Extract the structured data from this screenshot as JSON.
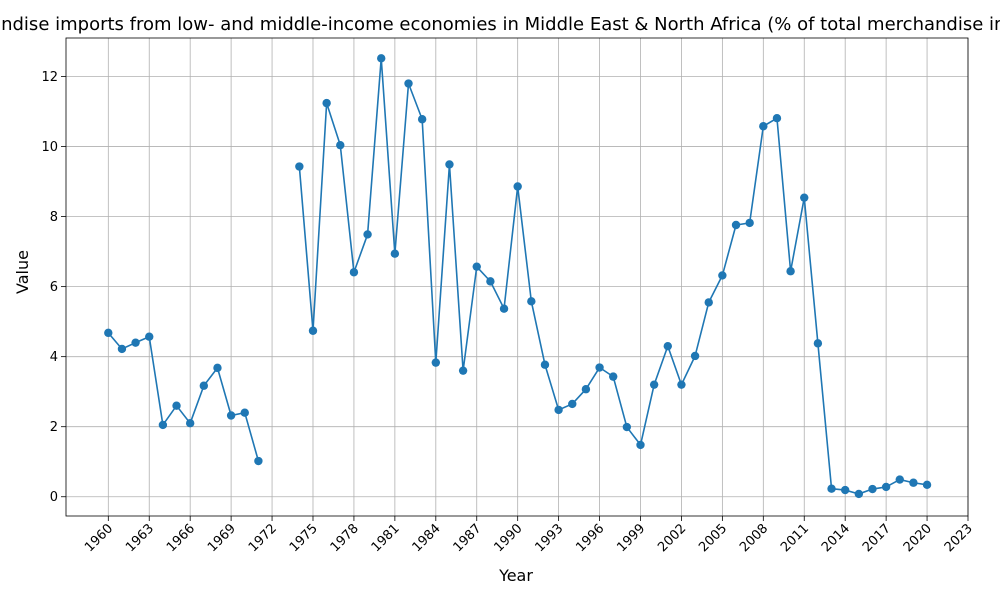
{
  "chart_data": {
    "type": "line",
    "title": "Merchandise imports from low- and middle-income economies in Middle East & North Africa (% of total merchandise imports)",
    "xlabel": "Year",
    "ylabel": "Value",
    "xlim": [
      1956.9,
      2023
    ],
    "ylim": [
      -0.55,
      13.1
    ],
    "xticks": [
      1960,
      1963,
      1966,
      1969,
      1972,
      1975,
      1978,
      1981,
      1984,
      1987,
      1990,
      1993,
      1996,
      1999,
      2002,
      2005,
      2008,
      2011,
      2014,
      2017,
      2020,
      2023
    ],
    "yticks": [
      0,
      2,
      4,
      6,
      8,
      10,
      12
    ],
    "grid": true,
    "legend": "none",
    "series": [
      {
        "color": "#1f77b4",
        "marker": "circle",
        "x": [
          1960,
          1961,
          1962,
          1963,
          1964,
          1965,
          1966,
          1967,
          1968,
          1969,
          1970,
          1971,
          1972,
          1973,
          1974,
          1975,
          1976,
          1977,
          1978,
          1979,
          1980,
          1981,
          1982,
          1983,
          1984,
          1985,
          1986,
          1987,
          1988,
          1989,
          1990,
          1991,
          1992,
          1993,
          1994,
          1995,
          1996,
          1997,
          1998,
          1999,
          2000,
          2001,
          2002,
          2003,
          2004,
          2005,
          2006,
          2007,
          2008,
          2009,
          2010,
          2011,
          2012,
          2013,
          2014,
          2015,
          2016,
          2017,
          2018,
          2019,
          2020
        ],
        "y": [
          4.68,
          4.22,
          4.4,
          4.57,
          2.05,
          2.6,
          2.1,
          3.17,
          3.68,
          2.32,
          2.4,
          1.02,
          null,
          null,
          9.43,
          4.74,
          11.24,
          10.04,
          6.41,
          7.49,
          12.52,
          6.94,
          11.8,
          10.78,
          3.83,
          9.49,
          3.6,
          6.57,
          6.15,
          5.37,
          8.86,
          5.58,
          3.77,
          2.48,
          2.65,
          3.07,
          3.69,
          3.43,
          1.99,
          1.48,
          3.2,
          4.3,
          3.2,
          4.02,
          5.55,
          6.32,
          7.76,
          7.82,
          10.58,
          10.81,
          6.44,
          8.54,
          4.38,
          0.23,
          0.19,
          0.08,
          0.22,
          0.28,
          0.49,
          0.4,
          0.34
        ]
      }
    ]
  }
}
